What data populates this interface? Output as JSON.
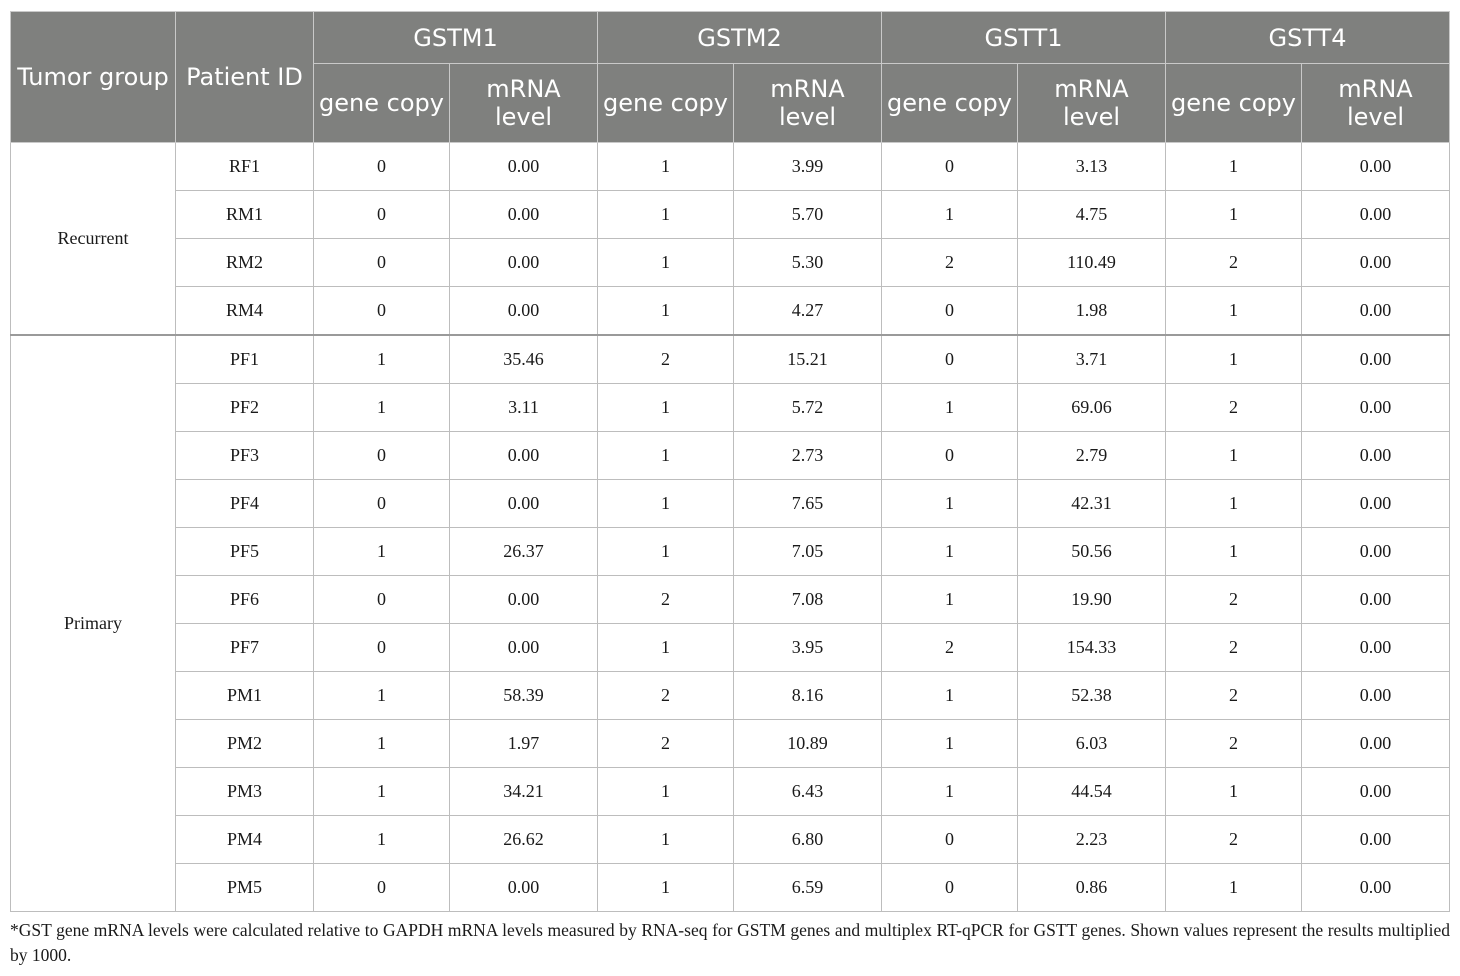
{
  "table": {
    "header": {
      "tumor_group": "Tumor group",
      "patient_id": "Patient ID",
      "genes": [
        "GSTM1",
        "GSTM2",
        "GSTT1",
        "GSTT4"
      ],
      "sub_gene_copy": "gene copy",
      "sub_mrna_level": "mRNA level"
    },
    "groups": [
      {
        "name": "Recurrent",
        "rows": [
          {
            "id": "RF1",
            "cells": [
              "0",
              "0.00",
              "1",
              "3.99",
              "0",
              "3.13",
              "1",
              "0.00"
            ]
          },
          {
            "id": "RM1",
            "cells": [
              "0",
              "0.00",
              "1",
              "5.70",
              "1",
              "4.75",
              "1",
              "0.00"
            ]
          },
          {
            "id": "RM2",
            "cells": [
              "0",
              "0.00",
              "1",
              "5.30",
              "2",
              "110.49",
              "2",
              "0.00"
            ]
          },
          {
            "id": "RM4",
            "cells": [
              "0",
              "0.00",
              "1",
              "4.27",
              "0",
              "1.98",
              "1",
              "0.00"
            ]
          }
        ]
      },
      {
        "name": "Primary",
        "rows": [
          {
            "id": "PF1",
            "cells": [
              "1",
              "35.46",
              "2",
              "15.21",
              "0",
              "3.71",
              "1",
              "0.00"
            ]
          },
          {
            "id": "PF2",
            "cells": [
              "1",
              "3.11",
              "1",
              "5.72",
              "1",
              "69.06",
              "2",
              "0.00"
            ]
          },
          {
            "id": "PF3",
            "cells": [
              "0",
              "0.00",
              "1",
              "2.73",
              "0",
              "2.79",
              "1",
              "0.00"
            ]
          },
          {
            "id": "PF4",
            "cells": [
              "0",
              "0.00",
              "1",
              "7.65",
              "1",
              "42.31",
              "1",
              "0.00"
            ]
          },
          {
            "id": "PF5",
            "cells": [
              "1",
              "26.37",
              "1",
              "7.05",
              "1",
              "50.56",
              "1",
              "0.00"
            ]
          },
          {
            "id": "PF6",
            "cells": [
              "0",
              "0.00",
              "2",
              "7.08",
              "1",
              "19.90",
              "2",
              "0.00"
            ]
          },
          {
            "id": "PF7",
            "cells": [
              "0",
              "0.00",
              "1",
              "3.95",
              "2",
              "154.33",
              "2",
              "0.00"
            ]
          },
          {
            "id": "PM1",
            "cells": [
              "1",
              "58.39",
              "2",
              "8.16",
              "1",
              "52.38",
              "2",
              "0.00"
            ]
          },
          {
            "id": "PM2",
            "cells": [
              "1",
              "1.97",
              "2",
              "10.89",
              "1",
              "6.03",
              "2",
              "0.00"
            ]
          },
          {
            "id": "PM3",
            "cells": [
              "1",
              "34.21",
              "1",
              "6.43",
              "1",
              "44.54",
              "1",
              "0.00"
            ]
          },
          {
            "id": "PM4",
            "cells": [
              "1",
              "26.62",
              "1",
              "6.80",
              "0",
              "2.23",
              "2",
              "0.00"
            ]
          },
          {
            "id": "PM5",
            "cells": [
              "0",
              "0.00",
              "1",
              "6.59",
              "0",
              "0.86",
              "1",
              "0.00"
            ]
          }
        ]
      }
    ]
  },
  "footnote": "*GST gene mRNA levels were calculated relative to GAPDH mRNA levels measured by RNA-seq for GSTM genes and multiplex RT-qPCR for GSTT genes. Shown values represent the results multiplied by 1000."
}
